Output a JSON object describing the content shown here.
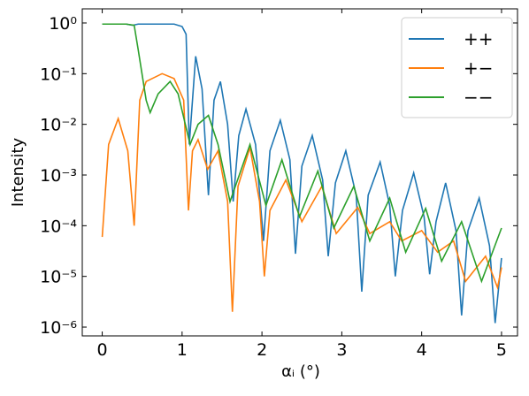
{
  "chart_data": {
    "type": "line",
    "xlabel": "αᵢ (°)",
    "ylabel": "Intensity",
    "xlim": [
      -0.25,
      5.2
    ],
    "ylim": [
      6.7e-07,
      1.9
    ],
    "yscale": "log",
    "xticks": [
      0,
      1,
      2,
      3,
      4,
      5
    ],
    "yticks": [
      {
        "value": 1,
        "label": "10⁰"
      },
      {
        "value": 0.1,
        "label": "10⁻¹"
      },
      {
        "value": 0.01,
        "label": "10⁻²"
      },
      {
        "value": 0.001,
        "label": "10⁻³"
      },
      {
        "value": 0.0001,
        "label": "10⁻⁴"
      },
      {
        "value": 1e-05,
        "label": "10⁻⁵"
      },
      {
        "value": 1e-06,
        "label": "10⁻⁶"
      }
    ],
    "legend": "upper right",
    "series": [
      {
        "name": "++",
        "color": "#1f77b4",
        "x": [
          0,
          0.3,
          0.38,
          0.45,
          0.9,
          1.0,
          1.05,
          1.09,
          1.17,
          1.25,
          1.33,
          1.4,
          1.48,
          1.57,
          1.64,
          1.71,
          1.8,
          1.92,
          2.02,
          2.1,
          2.23,
          2.35,
          2.42,
          2.5,
          2.63,
          2.76,
          2.83,
          2.92,
          3.05,
          3.18,
          3.25,
          3.33,
          3.48,
          3.6,
          3.67,
          3.76,
          3.9,
          4.03,
          4.1,
          4.18,
          4.3,
          4.43,
          4.5,
          4.58,
          4.72,
          4.85,
          4.92,
          5.0
        ],
        "values": [
          0.95,
          0.95,
          0.9,
          0.95,
          0.95,
          0.85,
          0.6,
          0.004,
          0.22,
          0.05,
          0.0004,
          0.03,
          0.07,
          0.01,
          0.0003,
          0.006,
          0.02,
          0.004,
          5e-05,
          0.003,
          0.012,
          0.002,
          2.8e-05,
          0.0015,
          0.006,
          0.0008,
          2.5e-05,
          0.0007,
          0.003,
          0.0004,
          5e-06,
          0.0004,
          0.0018,
          0.00025,
          1e-05,
          0.0002,
          0.0011,
          0.00015,
          1.1e-05,
          0.00012,
          0.0007,
          8e-05,
          1.7e-06,
          8e-05,
          0.00035,
          4e-05,
          1.2e-06,
          2.3e-05
        ]
      },
      {
        "name": "+−",
        "color": "#ff7f0e",
        "x": [
          0,
          0.08,
          0.2,
          0.32,
          0.4,
          0.47,
          0.55,
          0.75,
          0.9,
          1.02,
          1.08,
          1.13,
          1.2,
          1.32,
          1.45,
          1.57,
          1.63,
          1.7,
          1.85,
          1.97,
          2.03,
          2.1,
          2.3,
          2.5,
          2.75,
          2.93,
          3.2,
          3.35,
          3.6,
          3.75,
          4.0,
          4.2,
          4.4,
          4.55,
          4.8,
          4.95,
          5.0
        ],
        "values": [
          6e-05,
          0.004,
          0.013,
          0.003,
          0.0001,
          0.03,
          0.07,
          0.1,
          0.08,
          0.03,
          0.0002,
          0.003,
          0.005,
          0.0013,
          0.003,
          0.0003,
          2e-06,
          0.0006,
          0.0035,
          0.0003,
          1e-05,
          0.0002,
          0.0008,
          0.00012,
          0.0006,
          7e-05,
          0.00023,
          7e-05,
          0.00012,
          5e-05,
          8e-05,
          3e-05,
          5e-05,
          8e-06,
          2.5e-05,
          6e-06,
          1.5e-05
        ]
      },
      {
        "name": "−−",
        "color": "#2ca02c",
        "x": [
          0,
          0.3,
          0.4,
          0.45,
          0.55,
          0.6,
          0.7,
          0.85,
          0.95,
          1.1,
          1.2,
          1.33,
          1.45,
          1.6,
          1.85,
          2.05,
          2.25,
          2.47,
          2.7,
          2.9,
          3.15,
          3.35,
          3.6,
          3.8,
          4.05,
          4.25,
          4.5,
          4.75,
          5.0
        ],
        "values": [
          0.95,
          0.95,
          0.9,
          0.3,
          0.03,
          0.017,
          0.04,
          0.07,
          0.04,
          0.004,
          0.01,
          0.015,
          0.004,
          0.0003,
          0.004,
          0.00025,
          0.002,
          0.00015,
          0.0012,
          9e-05,
          0.0006,
          5e-05,
          0.00035,
          3e-05,
          0.00022,
          2e-05,
          0.00012,
          8e-06,
          9e-05
        ]
      }
    ]
  }
}
